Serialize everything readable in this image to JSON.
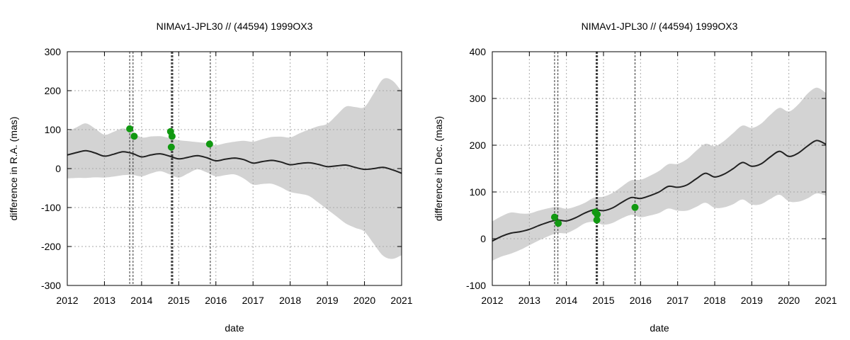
{
  "colors": {
    "band": "#d3d3d3",
    "line": "#222222",
    "points": "#119911",
    "grid": "#aaaaaa"
  },
  "chart_data": [
    {
      "type": "line",
      "title": "NIMAv1-JPL30 // (44594) 1999OX3",
      "xlabel": "date",
      "ylabel": "difference in R.A. (mas)",
      "xlim": [
        2012,
        2021
      ],
      "ylim": [
        -300,
        300
      ],
      "xticks": [
        "2012",
        "2013",
        "2014",
        "2015",
        "2016",
        "2017",
        "2018",
        "2019",
        "2020",
        "2021"
      ],
      "yticks": [
        "-300",
        "-200",
        "-100",
        "0",
        "100",
        "200",
        "300"
      ],
      "grid": true,
      "band_half_width": [
        [
          2012,
          60
        ],
        [
          2012.5,
          70
        ],
        [
          2013,
          55
        ],
        [
          2013.5,
          60
        ],
        [
          2014,
          50
        ],
        [
          2014.5,
          45
        ],
        [
          2015,
          48
        ],
        [
          2015.5,
          35
        ],
        [
          2016,
          40
        ],
        [
          2016.5,
          42
        ],
        [
          2017,
          55
        ],
        [
          2017.5,
          60
        ],
        [
          2018,
          70
        ],
        [
          2018.5,
          85
        ],
        [
          2019,
          110
        ],
        [
          2019.5,
          150
        ],
        [
          2020,
          160
        ],
        [
          2020.6,
          240
        ],
        [
          2021,
          210
        ]
      ],
      "series": [
        {
          "name": "NIMAv1 - JPL30",
          "x": [
            2012,
            2012.25,
            2012.5,
            2012.75,
            2013,
            2013.25,
            2013.5,
            2013.75,
            2014,
            2014.25,
            2014.5,
            2014.75,
            2015,
            2015.25,
            2015.5,
            2015.75,
            2016,
            2016.25,
            2016.5,
            2016.75,
            2017,
            2017.25,
            2017.5,
            2017.75,
            2018,
            2018.25,
            2018.5,
            2018.75,
            2019,
            2019.25,
            2019.5,
            2019.75,
            2020,
            2020.25,
            2020.5,
            2020.75,
            2021
          ],
          "y": [
            35,
            41,
            46,
            40,
            32,
            37,
            43,
            39,
            30,
            35,
            38,
            32,
            25,
            29,
            33,
            28,
            20,
            24,
            27,
            23,
            14,
            18,
            21,
            17,
            10,
            13,
            15,
            11,
            5,
            7,
            9,
            3,
            -2,
            0,
            3,
            -3,
            -12
          ]
        }
      ],
      "observations": {
        "x": [
          2013.68,
          2013.8,
          2014.78,
          2014.82,
          2014.8,
          2015.83
        ],
        "y": [
          102,
          83,
          95,
          83,
          55,
          63
        ]
      },
      "event_lines": [
        2013.68,
        2013.77,
        2014.8,
        2014.82,
        2014.84,
        2015.85
      ]
    },
    {
      "type": "line",
      "title": "NIMAv1-JPL30 // (44594) 1999OX3",
      "xlabel": "date",
      "ylabel": "difference in Dec. (mas)",
      "xlim": [
        2012,
        2021
      ],
      "ylim": [
        -100,
        400
      ],
      "xticks": [
        "2012",
        "2013",
        "2014",
        "2015",
        "2016",
        "2017",
        "2018",
        "2019",
        "2020",
        "2021"
      ],
      "yticks": [
        "-100",
        "0",
        "100",
        "200",
        "300",
        "400"
      ],
      "grid": true,
      "band_half_width": [
        [
          2012,
          42
        ],
        [
          2012.5,
          44
        ],
        [
          2013,
          34
        ],
        [
          2013.5,
          30
        ],
        [
          2014,
          26
        ],
        [
          2014.5,
          22
        ],
        [
          2015,
          30
        ],
        [
          2015.5,
          34
        ],
        [
          2016,
          40
        ],
        [
          2016.5,
          45
        ],
        [
          2017,
          50
        ],
        [
          2017.5,
          60
        ],
        [
          2018,
          66
        ],
        [
          2018.5,
          76
        ],
        [
          2019,
          82
        ],
        [
          2019.5,
          90
        ],
        [
          2020,
          96
        ],
        [
          2020.6,
          115
        ],
        [
          2021,
          110
        ]
      ],
      "series": [
        {
          "name": "NIMAv1 - JPL30",
          "x": [
            2012,
            2012.25,
            2012.5,
            2012.75,
            2013,
            2013.25,
            2013.5,
            2013.75,
            2014,
            2014.25,
            2014.5,
            2014.75,
            2015,
            2015.25,
            2015.5,
            2015.75,
            2016,
            2016.25,
            2016.5,
            2016.75,
            2017,
            2017.25,
            2017.5,
            2017.75,
            2018,
            2018.25,
            2018.5,
            2018.75,
            2019,
            2019.25,
            2019.5,
            2019.75,
            2020,
            2020.25,
            2020.5,
            2020.75,
            2021
          ],
          "y": [
            -5,
            5,
            12,
            15,
            20,
            28,
            35,
            40,
            38,
            45,
            55,
            62,
            60,
            66,
            78,
            88,
            86,
            92,
            100,
            112,
            110,
            115,
            128,
            140,
            132,
            138,
            150,
            163,
            155,
            160,
            175,
            187,
            176,
            183,
            198,
            210,
            202
          ]
        }
      ],
      "observations": {
        "x": [
          2013.68,
          2013.78,
          2014.78,
          2014.83,
          2014.82,
          2015.85
        ],
        "y": [
          46,
          33,
          57,
          52,
          40,
          67
        ]
      },
      "event_lines": [
        2013.68,
        2013.77,
        2014.8,
        2014.82,
        2014.84,
        2015.85
      ]
    }
  ]
}
